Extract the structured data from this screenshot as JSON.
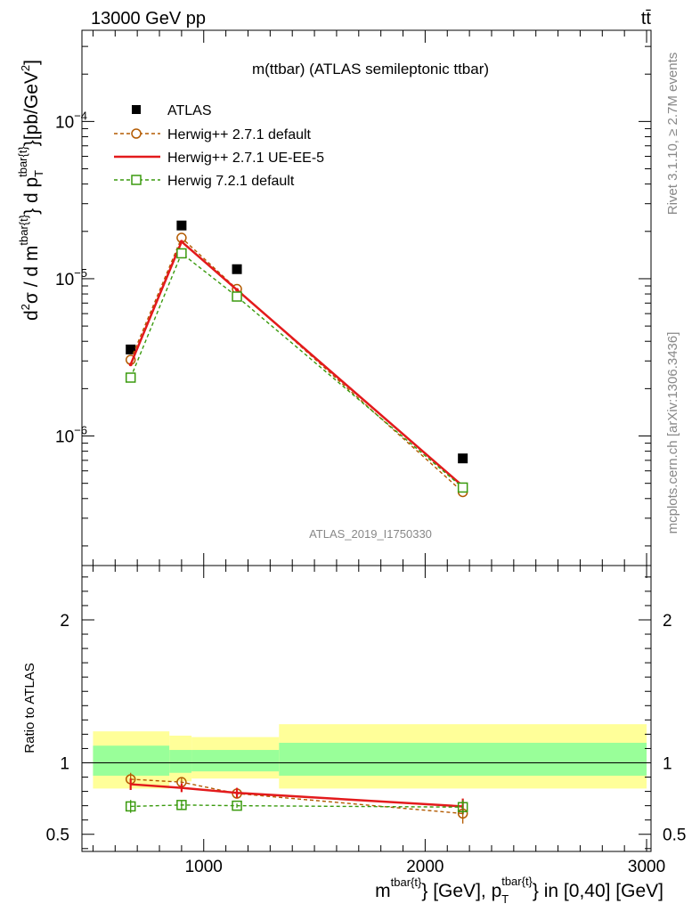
{
  "header": {
    "energy_label": "13000 GeV pp",
    "process_label": "tt̄",
    "rivet_label": "Rivet 3.1.10, ≥ 2.7M events",
    "mcplots_label": "mcplots.cern.ch [arXiv:1306.3436]",
    "analysis_label": "ATLAS_2019_I1750330"
  },
  "chart_data": [
    {
      "type": "scatter",
      "panel": "main",
      "title": "m(ttbar) (ATLAS semileptonic ttbar)",
      "ylabel": "d²σ / d m^{tbar{t}} d p_T^{tbar{t}} [pb/GeV²]",
      "ylabel_parts": {
        "a": "d",
        "a_sup": "2",
        "b": "σ / d m",
        "b_sup": "tbar{t}",
        "c": "} d p",
        "c_sub": "T",
        "c_sup": "tbar{t}",
        "d": "}[pb/GeV",
        "d_sup": "2",
        "e": "]"
      },
      "yscale": "log",
      "ylim": [
        1.5e-07,
        0.00038
      ],
      "xlim": [
        450,
        3020
      ],
      "y_tick_labels": [
        {
          "value": 1e-06,
          "base": "10",
          "exp": "−6"
        },
        {
          "value": 1e-05,
          "base": "10",
          "exp": "−5"
        },
        {
          "value": 0.0001,
          "base": "10",
          "exp": "−4"
        }
      ],
      "legend_position": "top-left",
      "series": [
        {
          "name": "ATLAS",
          "color": "#000000",
          "marker": "square-filled",
          "line": "none",
          "x": [
            670,
            900,
            1150,
            2170
          ],
          "y": [
            3.55e-06,
            2.18e-05,
            1.15e-05,
            7.2e-07
          ]
        },
        {
          "name": "Herwig++ 2.7.1 default",
          "color": "#b35a00",
          "marker": "circle-open",
          "line": "dashed",
          "x": [
            670,
            900,
            1150,
            2170
          ],
          "y": [
            3.05e-06,
            1.82e-05,
            8.6e-06,
            4.4e-07
          ]
        },
        {
          "name": "Herwig++ 2.7.1 UE-EE-5",
          "color": "#e31a1c",
          "marker": "none",
          "line": "solid",
          "x": [
            670,
            900,
            1150,
            2170
          ],
          "y": [
            2.85e-06,
            1.72e-05,
            8.5e-06,
            4.8e-07
          ]
        },
        {
          "name": "Herwig 7.2.1 default",
          "color": "#3a9a0e",
          "marker": "square-open",
          "line": "dashed",
          "x": [
            670,
            900,
            1150,
            2170
          ],
          "y": [
            2.35e-06,
            1.45e-05,
            7.7e-06,
            4.7e-07
          ]
        }
      ]
    },
    {
      "type": "scatter",
      "panel": "ratio",
      "ylabel": "Ratio to ATLAS",
      "xlabel": "m^{tbar{t}} [GeV], p_T^{tbar{t}} in [0,40] [GeV]",
      "xlabel_parts": {
        "a": "m",
        "a_sup": "tbar{t}",
        "b": "} [GeV], p",
        "b_sub": "T",
        "b_sup": "tbar{t}",
        "c": "} in [0,40] [GeV]"
      },
      "ylim": [
        0.38,
        2.38
      ],
      "xlim": [
        450,
        3020
      ],
      "x_ticks": [
        1000,
        2000,
        3000
      ],
      "y_ticks": [
        0.5,
        1,
        2
      ],
      "x_tick_labels": [
        "1000",
        "2000",
        "3000"
      ],
      "y_tick_labels": [
        "0.5",
        "1",
        "2"
      ],
      "reference_line": 1,
      "uncertainty_bands": [
        {
          "x_range": [
            500,
            845
          ],
          "inner": [
            0.91,
            1.12
          ],
          "outer": [
            0.82,
            1.22
          ]
        },
        {
          "x_range": [
            845,
            945
          ],
          "inner": [
            0.93,
            1.09
          ],
          "outer": [
            0.87,
            1.19
          ]
        },
        {
          "x_range": [
            945,
            1340
          ],
          "inner": [
            0.94,
            1.09
          ],
          "outer": [
            0.89,
            1.18
          ]
        },
        {
          "x_range": [
            1340,
            3000
          ],
          "inner": [
            0.91,
            1.14
          ],
          "outer": [
            0.82,
            1.27
          ]
        }
      ],
      "series": [
        {
          "name": "Herwig++ 2.7.1 default",
          "color": "#b35a00",
          "marker": "circle-open",
          "line": "dashed",
          "x": [
            670,
            900,
            1150,
            2170
          ],
          "y": [
            0.885,
            0.865,
            0.785,
            0.645
          ],
          "yerr": [
            0.045,
            0.035,
            0.035,
            0.07
          ]
        },
        {
          "name": "Herwig++ 2.7.1 UE-EE-5",
          "color": "#e31a1c",
          "marker": "none",
          "line": "solid",
          "x": [
            670,
            900,
            1150,
            2170
          ],
          "y": [
            0.85,
            0.825,
            0.79,
            0.695
          ],
          "yerr": [
            0.04,
            0.03,
            0.035,
            0.055
          ]
        },
        {
          "name": "Herwig 7.2.1 default",
          "color": "#3a9a0e",
          "marker": "square-open",
          "line": "dashed",
          "x": [
            670,
            900,
            1150,
            2170
          ],
          "y": [
            0.695,
            0.705,
            0.7,
            0.69
          ],
          "yerr": [
            0.045,
            0.03,
            0.015,
            0.05
          ]
        }
      ]
    }
  ]
}
